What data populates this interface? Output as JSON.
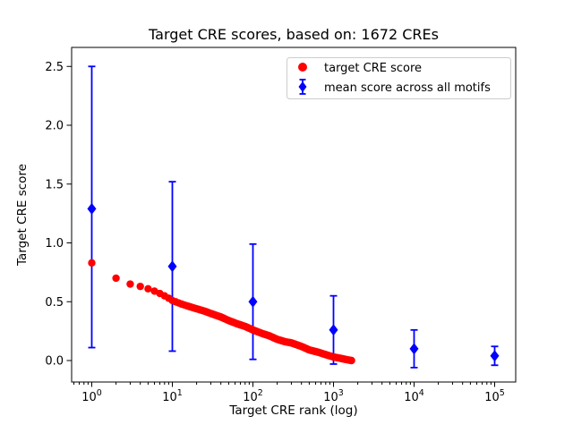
{
  "chart_data": {
    "type": "scatter",
    "title": "Target CRE scores, based on: 1672 CREs",
    "xlabel": "Target CRE rank (log)",
    "ylabel": "Target CRE score",
    "x_scale": "log",
    "xlim": [
      1,
      100000
    ],
    "ylim": [
      -0.18,
      2.66
    ],
    "x_tick_base": "10",
    "x_tick_exponents": [
      0,
      1,
      2,
      3,
      4,
      5
    ],
    "y_ticks": [
      0.0,
      0.5,
      1.0,
      1.5,
      2.0,
      2.5
    ],
    "grid": false,
    "legend": {
      "position": "upper right",
      "entries": [
        {
          "label": "target CRE score",
          "marker": "circle",
          "color": "#ff0000"
        },
        {
          "label": "mean score across all motifs",
          "marker": "diamond-errorbar",
          "color": "#0000ff"
        }
      ]
    },
    "series": [
      {
        "name": "target CRE score",
        "kind": "scatter",
        "marker": "circle",
        "color": "#ff0000",
        "n_points": 1672,
        "anchors": [
          [
            1,
            0.83
          ],
          [
            2,
            0.7
          ],
          [
            3,
            0.65
          ],
          [
            4,
            0.63
          ],
          [
            5,
            0.61
          ],
          [
            6,
            0.59
          ],
          [
            7,
            0.57
          ],
          [
            8,
            0.55
          ],
          [
            9,
            0.53
          ],
          [
            10,
            0.51
          ],
          [
            13,
            0.48
          ],
          [
            16,
            0.46
          ],
          [
            20,
            0.44
          ],
          [
            25,
            0.42
          ],
          [
            30,
            0.4
          ],
          [
            40,
            0.37
          ],
          [
            50,
            0.34
          ],
          [
            65,
            0.31
          ],
          [
            80,
            0.29
          ],
          [
            100,
            0.26
          ],
          [
            130,
            0.23
          ],
          [
            160,
            0.21
          ],
          [
            200,
            0.18
          ],
          [
            250,
            0.16
          ],
          [
            300,
            0.15
          ],
          [
            400,
            0.12
          ],
          [
            500,
            0.09
          ],
          [
            650,
            0.07
          ],
          [
            800,
            0.05
          ],
          [
            1000,
            0.03
          ],
          [
            1200,
            0.02
          ],
          [
            1400,
            0.01
          ],
          [
            1672,
            0.0
          ]
        ]
      },
      {
        "name": "mean score across all motifs",
        "kind": "errorbar",
        "marker": "diamond",
        "color": "#0000ff",
        "points": [
          {
            "x": 1,
            "y": 1.29,
            "lo": 0.11,
            "hi": 2.5
          },
          {
            "x": 10,
            "y": 0.8,
            "lo": 0.08,
            "hi": 1.52
          },
          {
            "x": 100,
            "y": 0.5,
            "lo": 0.01,
            "hi": 0.99
          },
          {
            "x": 1000,
            "y": 0.26,
            "lo": -0.03,
            "hi": 0.55
          },
          {
            "x": 10000,
            "y": 0.1,
            "lo": -0.06,
            "hi": 0.26
          },
          {
            "x": 100000,
            "y": 0.04,
            "lo": -0.04,
            "hi": 0.12
          }
        ]
      }
    ]
  }
}
